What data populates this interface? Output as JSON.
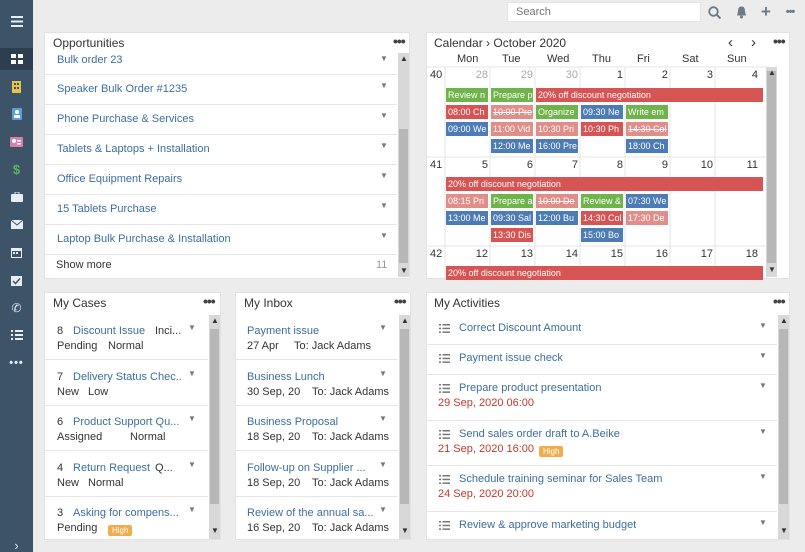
{
  "sidebar": {
    "menu_icon": "menu-icon",
    "items": [
      "dashboard-icon",
      "building-icon",
      "contact-icon",
      "card-icon",
      "dollar-icon",
      "briefcase-icon",
      "email-icon",
      "calendar-icon",
      "task-check-icon",
      "phone-icon",
      "checklist-icon",
      "more-icon"
    ],
    "expand_icon": "chevron-right-icon"
  },
  "topbar": {
    "search_placeholder": "Search"
  },
  "opportunities": {
    "title": "Opportunities",
    "items": [
      "Bulk order 23",
      "Speaker Bulk Order #1235",
      "Phone Purchase & Services",
      "Tablets & Laptops + Installation",
      "Office Equipment Repairs",
      "15 Tablets Purchase",
      "Laptop Bulk Purchase & Installation"
    ],
    "show_more": "Show more",
    "count": "11"
  },
  "calendar": {
    "title": "Calendar",
    "breadcrumb_sep": "›",
    "month": "October 2020",
    "prev": "‹",
    "next": "›",
    "days": [
      "Mon",
      "Tue",
      "Wed",
      "Thu",
      "Fri",
      "Sat",
      "Sun"
    ],
    "weeks": [
      {
        "num": "40",
        "dates": [
          "28",
          "29",
          "30",
          "1",
          "2",
          "3",
          "4"
        ]
      },
      {
        "num": "41",
        "dates": [
          "5",
          "6",
          "7",
          "8",
          "9",
          "10",
          "11"
        ]
      },
      {
        "num": "42",
        "dates": [
          "12",
          "13",
          "14",
          "15",
          "16",
          "17",
          "18"
        ]
      }
    ],
    "events_w1": {
      "bar": "20% off discount negotiation",
      "mon": [
        "Review n",
        "08:00 Ch",
        "09:00 We"
      ],
      "tue": [
        "Prepare p",
        "10:00 Pre",
        "11:00 Vid",
        "12:00 Me"
      ],
      "wed": [
        "Organize",
        "10:30 Pri",
        "16:00 Pre"
      ],
      "thu": [
        "09:30 Ne",
        "10:30 Ph"
      ],
      "fri": [
        "Write em",
        "14:30 Col",
        "18:00 Ch"
      ]
    },
    "events_w2": {
      "bar": "20% off discount negotiation",
      "mon": [
        "08:15 Pri",
        "13:00 Me"
      ],
      "tue": [
        "Prepare a",
        "09:30 Sal",
        "13:30 Dis"
      ],
      "wed": [
        "10:00 De",
        "12:00 Bu"
      ],
      "thu": [
        "Review &",
        "14:30 Col",
        "15:00 Bo"
      ],
      "fri": [
        "07:30 We",
        "17:30 De"
      ]
    },
    "events_w3": {
      "bar": "20% off discount negotiation"
    }
  },
  "cases": {
    "title": "My Cases",
    "items": [
      {
        "num": "8",
        "name": "Discount Issue",
        "extra": "Inci...",
        "status": "Pending",
        "priority": "Normal"
      },
      {
        "num": "7",
        "name": "Delivery Status Chec...",
        "extra": "",
        "status": "New",
        "priority": "Low"
      },
      {
        "num": "6",
        "name": "Product Support Qu...",
        "extra": "",
        "status": "Assigned",
        "priority": "Normal"
      },
      {
        "num": "4",
        "name": "Return Request",
        "extra": "Q...",
        "status": "New",
        "priority": "Normal"
      },
      {
        "num": "3",
        "name": "Asking for compens...",
        "extra": "",
        "status": "Pending",
        "priority": "High"
      }
    ]
  },
  "inbox": {
    "title": "My Inbox",
    "items": [
      {
        "subject": "Payment issue",
        "date": "27 Apr",
        "to": "To: Jack Adams"
      },
      {
        "subject": "Business Lunch",
        "date": "30 Sep, 20",
        "to": "To: Jack Adams"
      },
      {
        "subject": "Business Proposal",
        "date": "18 Sep, 20",
        "to": "To: Jack Adams"
      },
      {
        "subject": "Follow-up on Supplier ...",
        "date": "18 Sep, 20",
        "to": "To: Jack Adams"
      },
      {
        "subject": "Review of the annual sa...",
        "date": "16 Sep, 20",
        "to": "To: Jack Adams"
      }
    ]
  },
  "activities": {
    "title": "My Activities",
    "items": [
      {
        "name": "Correct Discount Amount",
        "date": "",
        "badge": ""
      },
      {
        "name": "Payment issue check",
        "date": "",
        "badge": ""
      },
      {
        "name": "Prepare product presentation",
        "date": "29 Sep, 2020 06:00",
        "badge": ""
      },
      {
        "name": "Send sales order draft to A.Beike",
        "date": "21 Sep, 2020 16:00",
        "badge": "High"
      },
      {
        "name": "Schedule training seminar for Sales Team",
        "date": "24 Sep, 2020 20:00",
        "badge": ""
      },
      {
        "name": "Review & approve marketing budget",
        "date": "",
        "badge": ""
      }
    ]
  }
}
